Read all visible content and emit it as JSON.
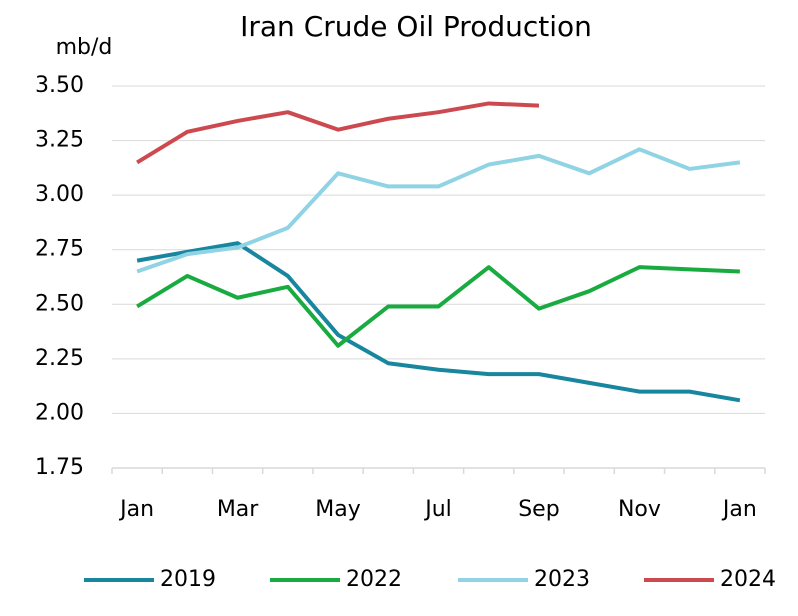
{
  "chart_data": {
    "type": "line",
    "title": "Iran Crude Oil Production",
    "y_axis_label": "mb/d",
    "categories": [
      "Jan",
      null,
      "Mar",
      null,
      "May",
      null,
      "Jul",
      null,
      "Sep",
      null,
      "Nov",
      null,
      "Jan"
    ],
    "series": [
      {
        "name": "2019",
        "color": "#17869e",
        "values": [
          2.7,
          2.74,
          2.78,
          2.63,
          2.36,
          2.23,
          2.2,
          2.18,
          2.18,
          2.14,
          2.1,
          2.1,
          2.06
        ]
      },
      {
        "name": "2022",
        "color": "#1aab40",
        "values": [
          2.49,
          2.63,
          2.53,
          2.58,
          2.31,
          2.49,
          2.49,
          2.67,
          2.48,
          2.56,
          2.67,
          2.66,
          2.65
        ]
      },
      {
        "name": "2023",
        "color": "#8fd3e4",
        "values": [
          2.65,
          2.73,
          2.76,
          2.85,
          3.1,
          3.04,
          3.04,
          3.14,
          3.18,
          3.1,
          3.21,
          3.12,
          3.15
        ]
      },
      {
        "name": "2024",
        "color": "#cc4a4f",
        "values": [
          3.15,
          3.29,
          3.34,
          3.38,
          3.3,
          3.35,
          3.38,
          3.42,
          3.41,
          null,
          null,
          null,
          null
        ]
      }
    ],
    "ylim": [
      1.75,
      3.5
    ],
    "yticks": [
      {
        "value": 1.75,
        "label": "1.75"
      },
      {
        "value": 2,
        "label": "2.00"
      },
      {
        "value": 2.25,
        "label": "2.25"
      },
      {
        "value": 2.5,
        "label": "2.50"
      },
      {
        "value": 2.75,
        "label": "2.75"
      },
      {
        "value": 3,
        "label": "3.00"
      },
      {
        "value": 3.25,
        "label": "3.25"
      },
      {
        "value": 3.5,
        "label": "3.50"
      }
    ],
    "grid": true,
    "legend": "bottom"
  }
}
